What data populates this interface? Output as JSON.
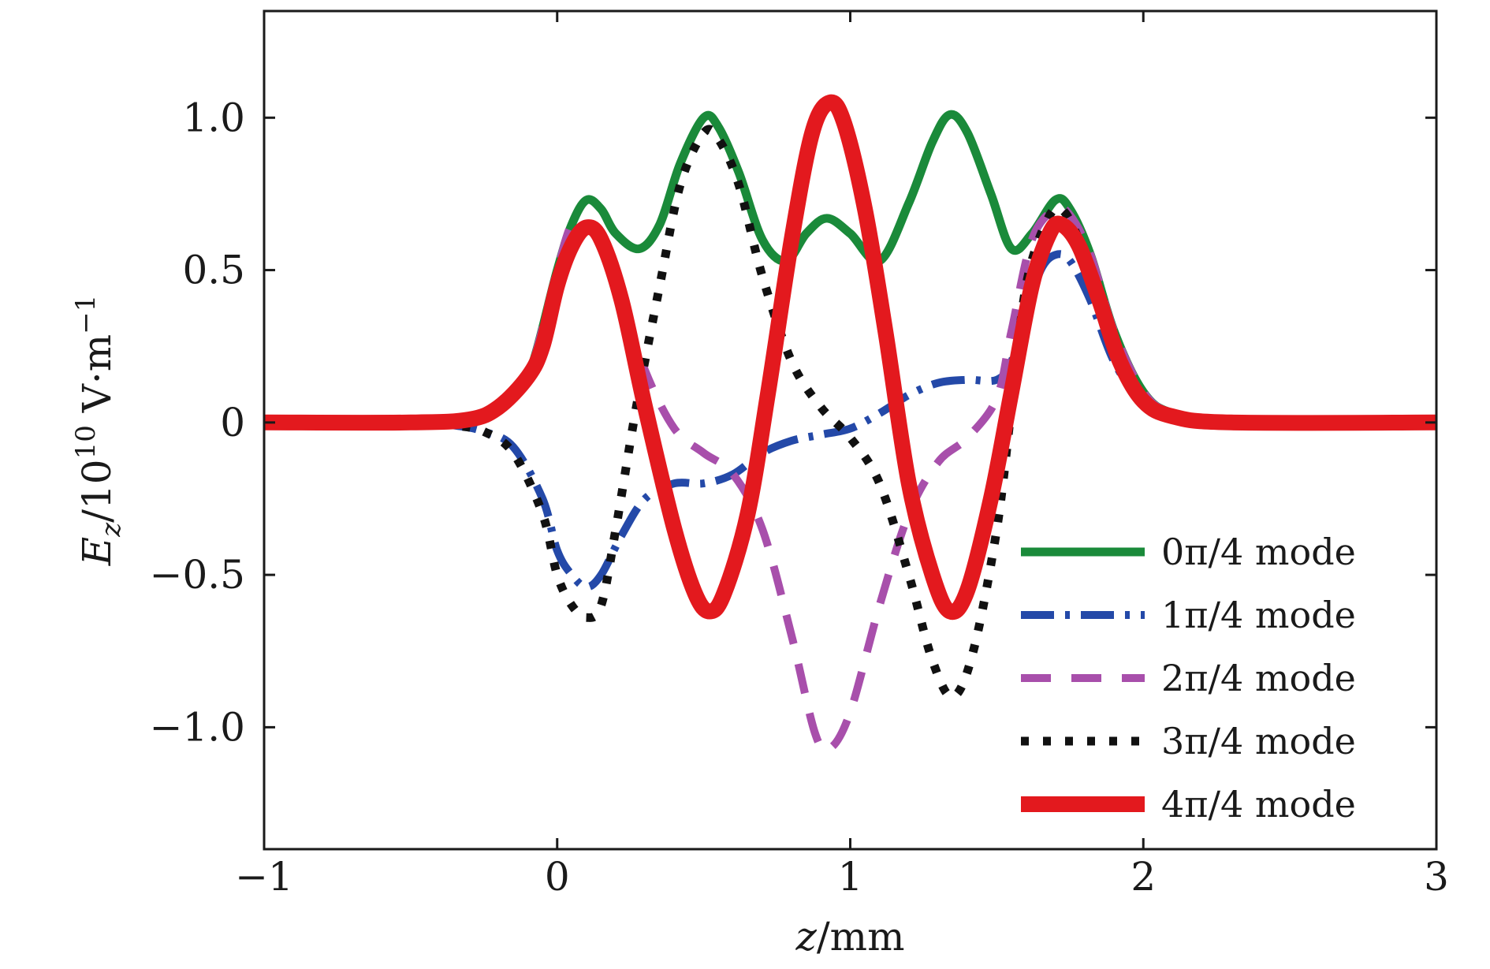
{
  "chart_data": {
    "type": "line",
    "xlabel": "z/mm",
    "ylabel": "E_z/10^10 V·m^-1",
    "ylabel_parts": {
      "var": "E",
      "sub": "z",
      "mid": "/10",
      "exp": "10",
      "unit": " V·m",
      "unit_exp": "−1"
    },
    "xlim": [
      -1,
      3
    ],
    "ylim": [
      -1.4,
      1.35
    ],
    "x_ticks": [
      -1,
      0,
      1,
      2,
      3
    ],
    "x_tick_labels": [
      "−1",
      "0",
      "1",
      "2",
      "3"
    ],
    "y_ticks": [
      -1.0,
      -0.5,
      0,
      0.5,
      1.0
    ],
    "y_tick_labels": [
      "−1.0",
      "−0.5",
      "0",
      "0.5",
      "1.0"
    ],
    "grid": false,
    "legend_position": "bottom-right",
    "series": [
      {
        "name": "0π/4 mode",
        "color": "#1a8a3a",
        "style": "solid",
        "points": [
          [
            -1,
            0
          ],
          [
            -0.5,
            0.0
          ],
          [
            -0.3,
            0.01
          ],
          [
            -0.2,
            0.05
          ],
          [
            -0.1,
            0.15
          ],
          [
            0,
            0.5
          ],
          [
            0.05,
            0.65
          ],
          [
            0.1,
            0.73
          ],
          [
            0.15,
            0.7
          ],
          [
            0.2,
            0.62
          ],
          [
            0.28,
            0.57
          ],
          [
            0.35,
            0.65
          ],
          [
            0.42,
            0.85
          ],
          [
            0.5,
            1.0
          ],
          [
            0.55,
            0.97
          ],
          [
            0.62,
            0.82
          ],
          [
            0.7,
            0.6
          ],
          [
            0.78,
            0.53
          ],
          [
            0.85,
            0.62
          ],
          [
            0.92,
            0.67
          ],
          [
            1.0,
            0.62
          ],
          [
            1.1,
            0.53
          ],
          [
            1.2,
            0.72
          ],
          [
            1.28,
            0.92
          ],
          [
            1.34,
            1.01
          ],
          [
            1.4,
            0.95
          ],
          [
            1.48,
            0.75
          ],
          [
            1.55,
            0.57
          ],
          [
            1.62,
            0.62
          ],
          [
            1.7,
            0.73
          ],
          [
            1.75,
            0.7
          ],
          [
            1.82,
            0.55
          ],
          [
            1.9,
            0.3
          ],
          [
            2.0,
            0.1
          ],
          [
            2.1,
            0.03
          ],
          [
            2.3,
            0.0
          ],
          [
            3,
            0
          ]
        ]
      },
      {
        "name": "1π/4 mode",
        "color": "#2449a8",
        "style": "dashdot",
        "points": [
          [
            -1,
            0
          ],
          [
            -0.5,
            0.0
          ],
          [
            -0.35,
            -0.01
          ],
          [
            -0.25,
            -0.03
          ],
          [
            -0.15,
            -0.08
          ],
          [
            -0.05,
            -0.25
          ],
          [
            0,
            -0.42
          ],
          [
            0.05,
            -0.5
          ],
          [
            0.1,
            -0.54
          ],
          [
            0.15,
            -0.5
          ],
          [
            0.22,
            -0.37
          ],
          [
            0.3,
            -0.25
          ],
          [
            0.4,
            -0.2
          ],
          [
            0.5,
            -0.2
          ],
          [
            0.6,
            -0.17
          ],
          [
            0.7,
            -0.1
          ],
          [
            0.8,
            -0.06
          ],
          [
            0.9,
            -0.04
          ],
          [
            1.0,
            -0.02
          ],
          [
            1.1,
            0.03
          ],
          [
            1.2,
            0.09
          ],
          [
            1.3,
            0.13
          ],
          [
            1.4,
            0.14
          ],
          [
            1.5,
            0.14
          ],
          [
            1.55,
            0.2
          ],
          [
            1.6,
            0.35
          ],
          [
            1.65,
            0.5
          ],
          [
            1.7,
            0.55
          ],
          [
            1.75,
            0.53
          ],
          [
            1.82,
            0.4
          ],
          [
            1.9,
            0.2
          ],
          [
            2.0,
            0.06
          ],
          [
            2.1,
            0.02
          ],
          [
            2.3,
            0.0
          ],
          [
            3,
            0
          ]
        ]
      },
      {
        "name": "2π/4 mode",
        "color": "#a84fab",
        "style": "dashed",
        "points": [
          [
            -1,
            0
          ],
          [
            -0.5,
            0.0
          ],
          [
            -0.3,
            0.01
          ],
          [
            -0.2,
            0.05
          ],
          [
            -0.1,
            0.15
          ],
          [
            0,
            0.5
          ],
          [
            0.05,
            0.65
          ],
          [
            0.1,
            0.65
          ],
          [
            0.15,
            0.6
          ],
          [
            0.2,
            0.45
          ],
          [
            0.3,
            0.17
          ],
          [
            0.4,
            -0.02
          ],
          [
            0.5,
            -0.1
          ],
          [
            0.6,
            -0.17
          ],
          [
            0.7,
            -0.35
          ],
          [
            0.8,
            -0.7
          ],
          [
            0.88,
            -1.02
          ],
          [
            0.93,
            -1.07
          ],
          [
            1.0,
            -0.95
          ],
          [
            1.1,
            -0.6
          ],
          [
            1.2,
            -0.3
          ],
          [
            1.3,
            -0.13
          ],
          [
            1.4,
            -0.05
          ],
          [
            1.5,
            0.08
          ],
          [
            1.55,
            0.3
          ],
          [
            1.62,
            0.6
          ],
          [
            1.7,
            0.7
          ],
          [
            1.75,
            0.68
          ],
          [
            1.82,
            0.55
          ],
          [
            1.9,
            0.3
          ],
          [
            2.0,
            0.1
          ],
          [
            2.1,
            0.03
          ],
          [
            2.3,
            0.0
          ],
          [
            3,
            0
          ]
        ]
      },
      {
        "name": "3π/4 mode",
        "color": "#111111",
        "style": "dotted",
        "points": [
          [
            -1,
            0
          ],
          [
            -0.5,
            0.0
          ],
          [
            -0.35,
            -0.01
          ],
          [
            -0.25,
            -0.03
          ],
          [
            -0.15,
            -0.1
          ],
          [
            -0.05,
            -0.3
          ],
          [
            0,
            -0.5
          ],
          [
            0.05,
            -0.6
          ],
          [
            0.1,
            -0.64
          ],
          [
            0.15,
            -0.6
          ],
          [
            0.2,
            -0.35
          ],
          [
            0.27,
            0.05
          ],
          [
            0.35,
            0.45
          ],
          [
            0.42,
            0.78
          ],
          [
            0.5,
            0.95
          ],
          [
            0.55,
            0.93
          ],
          [
            0.62,
            0.78
          ],
          [
            0.7,
            0.48
          ],
          [
            0.8,
            0.2
          ],
          [
            0.9,
            0.05
          ],
          [
            1.0,
            -0.05
          ],
          [
            1.1,
            -0.2
          ],
          [
            1.2,
            -0.5
          ],
          [
            1.28,
            -0.78
          ],
          [
            1.35,
            -0.9
          ],
          [
            1.42,
            -0.75
          ],
          [
            1.5,
            -0.35
          ],
          [
            1.55,
            0.05
          ],
          [
            1.6,
            0.45
          ],
          [
            1.67,
            0.66
          ],
          [
            1.72,
            0.7
          ],
          [
            1.78,
            0.6
          ],
          [
            1.85,
            0.4
          ],
          [
            1.92,
            0.2
          ],
          [
            2.0,
            0.08
          ],
          [
            2.1,
            0.02
          ],
          [
            2.3,
            0.0
          ],
          [
            3,
            0
          ]
        ]
      },
      {
        "name": "4π/4 mode",
        "color": "#e3191e",
        "style": "solid",
        "points": [
          [
            -1,
            0
          ],
          [
            -0.5,
            0.0
          ],
          [
            -0.3,
            0.01
          ],
          [
            -0.2,
            0.05
          ],
          [
            -0.1,
            0.15
          ],
          [
            -0.05,
            0.25
          ],
          [
            0,
            0.45
          ],
          [
            0.05,
            0.58
          ],
          [
            0.1,
            0.64
          ],
          [
            0.15,
            0.6
          ],
          [
            0.22,
            0.4
          ],
          [
            0.3,
            0.05
          ],
          [
            0.4,
            -0.35
          ],
          [
            0.47,
            -0.56
          ],
          [
            0.52,
            -0.62
          ],
          [
            0.57,
            -0.56
          ],
          [
            0.65,
            -0.3
          ],
          [
            0.72,
            0.1
          ],
          [
            0.8,
            0.6
          ],
          [
            0.87,
            0.95
          ],
          [
            0.93,
            1.05
          ],
          [
            0.98,
            0.98
          ],
          [
            1.05,
            0.7
          ],
          [
            1.12,
            0.3
          ],
          [
            1.2,
            -0.2
          ],
          [
            1.28,
            -0.5
          ],
          [
            1.34,
            -0.62
          ],
          [
            1.4,
            -0.55
          ],
          [
            1.48,
            -0.25
          ],
          [
            1.55,
            0.1
          ],
          [
            1.62,
            0.45
          ],
          [
            1.68,
            0.62
          ],
          [
            1.72,
            0.65
          ],
          [
            1.78,
            0.58
          ],
          [
            1.85,
            0.4
          ],
          [
            1.92,
            0.2
          ],
          [
            2.0,
            0.07
          ],
          [
            2.1,
            0.02
          ],
          [
            2.3,
            0.0
          ],
          [
            3,
            0
          ]
        ]
      }
    ]
  }
}
